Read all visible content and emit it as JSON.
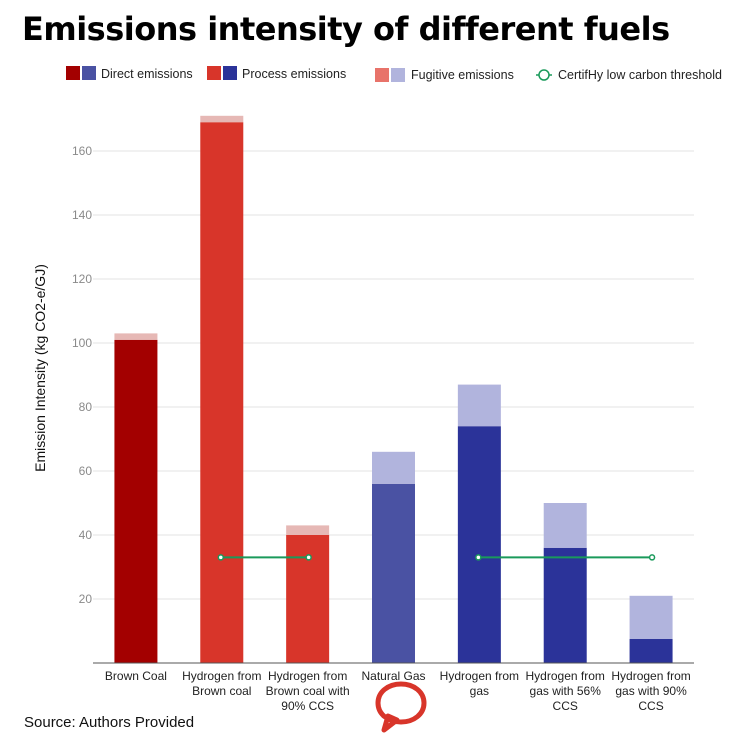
{
  "title": "Emissions intensity of different fuels",
  "source": "Source: Authors Provided",
  "logo": {
    "icon": "speech-bubble-logo-icon",
    "color": "#d8352a"
  },
  "colors": {
    "direct": [
      "#a30000",
      "#4a52a3"
    ],
    "process": [
      "#d8352a",
      "#2b3399"
    ],
    "fugitive": [
      "#e6b8b5",
      "#b1b4dd"
    ],
    "fugitive_legend": [
      "#e8736a",
      "#b1b4dd"
    ],
    "threshold": "#1a9a5b"
  },
  "chart_data": {
    "type": "bar",
    "stacked": true,
    "ylabel": "Emission Intensity (kg CO2-e/GJ)",
    "xlabel": "",
    "ylim": [
      0,
      170
    ],
    "yticks": [
      20,
      40,
      60,
      80,
      100,
      120,
      140,
      160
    ],
    "grid": true,
    "legend_position": "top",
    "legend": [
      {
        "label": "Direct emissions",
        "type": "swatch-pair",
        "key": "direct"
      },
      {
        "label": "Process emissions",
        "type": "swatch-pair",
        "key": "process"
      },
      {
        "label": "Fugitive emissions",
        "type": "swatch-pair",
        "key": "fugitive_legend"
      },
      {
        "label": "CertifHy low carbon threshold",
        "type": "line",
        "key": "threshold"
      }
    ],
    "categories": [
      {
        "label": [
          "Brown Coal"
        ],
        "main_type": "direct",
        "family": 0,
        "main": 101,
        "fugitive": 2
      },
      {
        "label": [
          "Hydrogen from",
          "Brown coal"
        ],
        "main_type": "process",
        "family": 0,
        "main": 169,
        "fugitive": 2
      },
      {
        "label": [
          "Hydrogen from",
          "Brown coal with",
          "90% CCS"
        ],
        "main_type": "process",
        "family": 0,
        "main": 40,
        "fugitive": 3
      },
      {
        "label": [
          "Natural Gas"
        ],
        "main_type": "direct",
        "family": 1,
        "main": 56,
        "fugitive": 10
      },
      {
        "label": [
          "Hydrogen from",
          "gas"
        ],
        "main_type": "process",
        "family": 1,
        "main": 74,
        "fugitive": 13
      },
      {
        "label": [
          "Hydrogen from",
          "gas with 56%",
          "CCS"
        ],
        "main_type": "process",
        "family": 1,
        "main": 36,
        "fugitive": 14
      },
      {
        "label": [
          "Hydrogen from",
          "gas with 90%",
          "CCS"
        ],
        "main_type": "process",
        "family": 1,
        "main": 7.5,
        "fugitive": 13.5
      }
    ],
    "threshold": {
      "name": "CertifHy low carbon threshold",
      "value": 33,
      "segments": [
        {
          "from_category": 1,
          "to_category": 2
        },
        {
          "from_category": 4,
          "to_category": 6
        }
      ]
    }
  }
}
